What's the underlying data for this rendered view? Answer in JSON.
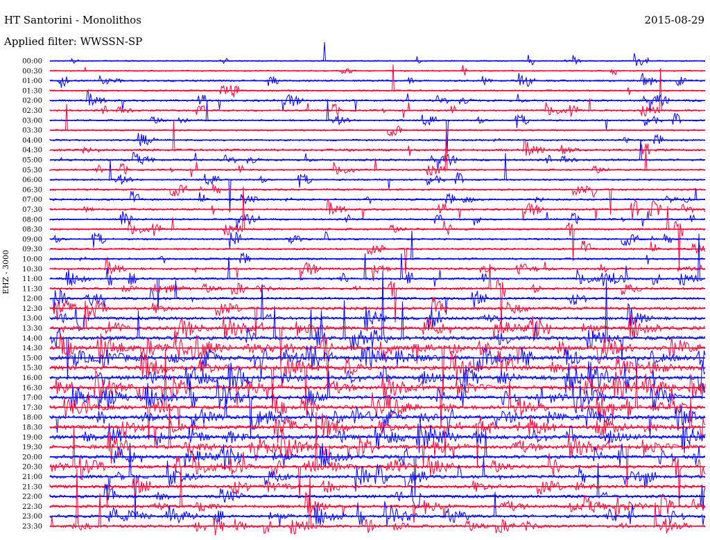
{
  "header": {
    "title": "HT Santorini - Monolithos",
    "date": "2015-08-29",
    "filter": "Applied filter: WWSSN-SP",
    "channel": "EHZ - 3000"
  },
  "colors": {
    "trace_a": "#0000ff",
    "trace_b": "#ff0033"
  },
  "chart_data": {
    "type": "line",
    "title": "HT Santorini - Monolithos",
    "subtitle": "Applied filter: WWSSN-SP",
    "ylabel": "EHZ - 3000",
    "row_interval_minutes": 30,
    "series_colors": [
      "#0000ff",
      "#ff0033"
    ],
    "rows": [
      {
        "time": "00:00",
        "activity": 0.1
      },
      {
        "time": "00:30",
        "activity": 0.12
      },
      {
        "time": "01:00",
        "activity": 0.25
      },
      {
        "time": "01:30",
        "activity": 0.2
      },
      {
        "time": "02:00",
        "activity": 0.3
      },
      {
        "time": "02:30",
        "activity": 0.28
      },
      {
        "time": "03:00",
        "activity": 0.22
      },
      {
        "time": "03:30",
        "activity": 0.2
      },
      {
        "time": "04:00",
        "activity": 0.25
      },
      {
        "time": "04:30",
        "activity": 0.4
      },
      {
        "time": "05:00",
        "activity": 0.3
      },
      {
        "time": "05:30",
        "activity": 0.25
      },
      {
        "time": "06:00",
        "activity": 0.22
      },
      {
        "time": "06:30",
        "activity": 0.28
      },
      {
        "time": "07:00",
        "activity": 0.3
      },
      {
        "time": "07:30",
        "activity": 0.32
      },
      {
        "time": "08:00",
        "activity": 0.25
      },
      {
        "time": "08:30",
        "activity": 0.3
      },
      {
        "time": "09:00",
        "activity": 0.28
      },
      {
        "time": "09:30",
        "activity": 0.3
      },
      {
        "time": "10:00",
        "activity": 0.32
      },
      {
        "time": "10:30",
        "activity": 0.35
      },
      {
        "time": "11:00",
        "activity": 0.38
      },
      {
        "time": "11:30",
        "activity": 0.4
      },
      {
        "time": "12:00",
        "activity": 0.45
      },
      {
        "time": "12:30",
        "activity": 0.55
      },
      {
        "time": "13:00",
        "activity": 0.65
      },
      {
        "time": "13:30",
        "activity": 0.75
      },
      {
        "time": "14:00",
        "activity": 0.85
      },
      {
        "time": "14:30",
        "activity": 0.95
      },
      {
        "time": "15:00",
        "activity": 1.0
      },
      {
        "time": "15:30",
        "activity": 1.0
      },
      {
        "time": "16:00",
        "activity": 0.95
      },
      {
        "time": "16:30",
        "activity": 0.85
      },
      {
        "time": "17:00",
        "activity": 0.8
      },
      {
        "time": "17:30",
        "activity": 0.8
      },
      {
        "time": "18:00",
        "activity": 0.85
      },
      {
        "time": "18:30",
        "activity": 0.85
      },
      {
        "time": "19:00",
        "activity": 0.9
      },
      {
        "time": "19:30",
        "activity": 0.85
      },
      {
        "time": "20:00",
        "activity": 0.75
      },
      {
        "time": "20:30",
        "activity": 0.7
      },
      {
        "time": "21:00",
        "activity": 0.65
      },
      {
        "time": "21:30",
        "activity": 0.65
      },
      {
        "time": "22:00",
        "activity": 0.65
      },
      {
        "time": "22:30",
        "activity": 0.6
      },
      {
        "time": "23:00",
        "activity": 0.6
      },
      {
        "time": "23:30",
        "activity": 0.55
      }
    ]
  }
}
